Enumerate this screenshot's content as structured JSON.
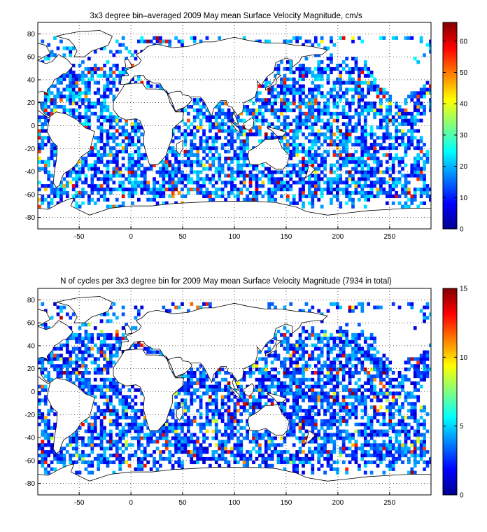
{
  "chart_data": [
    {
      "type": "heatmap",
      "title": "3x3 degree bin–averaged 2009 May mean Surface Velocity Magnitude, cm/s",
      "xlim": [
        -90,
        290
      ],
      "ylim": [
        -90,
        90
      ],
      "xticks": [
        -50,
        0,
        50,
        100,
        150,
        200,
        250
      ],
      "yticks": [
        80,
        60,
        40,
        20,
        0,
        -20,
        -40,
        -60,
        -80
      ],
      "grid": true,
      "bin_size_deg": 3,
      "colorbar": {
        "range": [
          0,
          66
        ],
        "ticks": [
          0,
          10,
          20,
          30,
          40,
          50,
          60
        ],
        "colormap": "jet",
        "placement": "right"
      },
      "cell_value_distribution": {
        "typical_range": [
          5,
          25
        ],
        "occasional_high_range": [
          40,
          66
        ]
      }
    },
    {
      "type": "heatmap",
      "title": "N of cycles per 3x3 degree bin for 2009 May mean Surface Velocity Magnitude (7934 in total)",
      "xlim": [
        -90,
        290
      ],
      "ylim": [
        -90,
        90
      ],
      "xticks": [
        -50,
        0,
        50,
        100,
        150,
        200,
        250
      ],
      "yticks": [
        80,
        60,
        40,
        20,
        0,
        -20,
        -40,
        -60,
        -80
      ],
      "grid": true,
      "bin_size_deg": 3,
      "colorbar": {
        "range": [
          0,
          15
        ],
        "ticks": [
          0,
          5,
          10,
          15
        ],
        "colormap": "jet",
        "placement": "right"
      },
      "cell_value_distribution": {
        "typical_range": [
          1,
          5
        ],
        "occasional_high_range": [
          8,
          15
        ]
      }
    }
  ]
}
